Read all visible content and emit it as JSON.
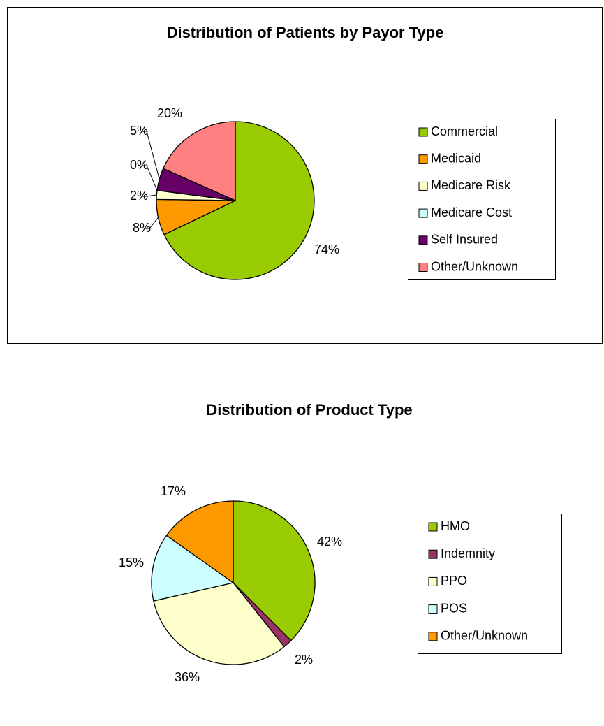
{
  "chart_data": [
    {
      "type": "pie",
      "title": "Distribution of Patients by Payor Type",
      "categories": [
        "Commercial",
        "Medicaid",
        "Medicare Risk",
        "Medicare Cost",
        "Self Insured",
        "Other/Unknown"
      ],
      "values": [
        74,
        8,
        2,
        0,
        5,
        20
      ],
      "value_labels": [
        "74%",
        "8%",
        "2%",
        "0%",
        "5%",
        "20%"
      ],
      "colors": [
        "#99cc00",
        "#ff9900",
        "#ffffcc",
        "#ccffff",
        "#660066",
        "#ff8080"
      ],
      "legend": "right"
    },
    {
      "type": "pie",
      "title": "Distribution of Product Type",
      "categories": [
        "HMO",
        "Indemnity",
        "PPO",
        "POS",
        "Other/Unknown"
      ],
      "values": [
        42,
        2,
        36,
        15,
        17
      ],
      "value_labels": [
        "42%",
        "2%",
        "36%",
        "15%",
        "17%"
      ],
      "colors": [
        "#99cc00",
        "#993366",
        "#ffffcc",
        "#ccffff",
        "#ff9900"
      ],
      "legend": "right"
    }
  ]
}
